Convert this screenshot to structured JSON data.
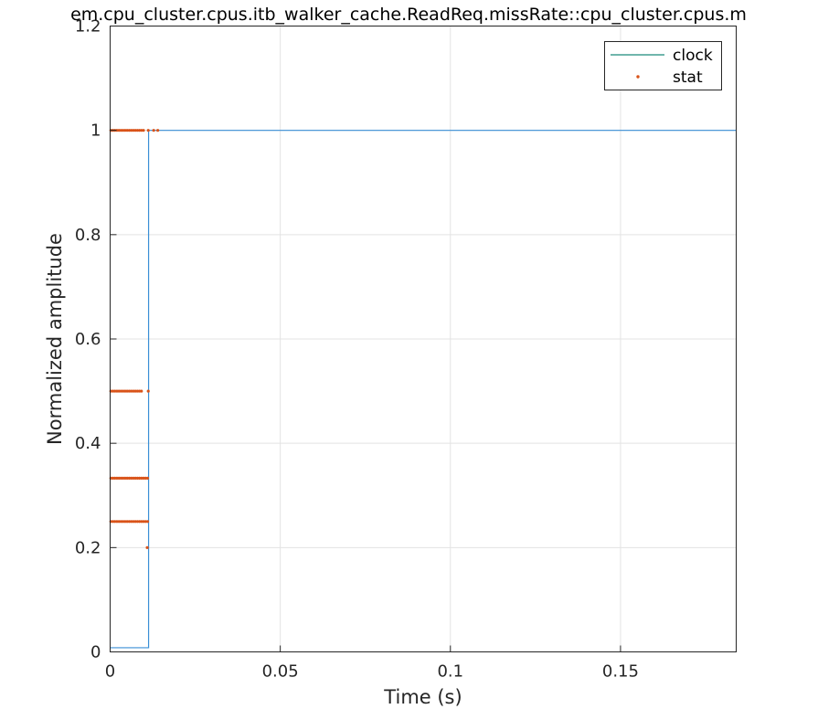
{
  "chart_data": {
    "type": "line",
    "title": "em.cpu_cluster.cpus.itb_walker_cache.ReadReq.missRate::cpu_cluster.cpus.m",
    "xlabel": "Time (s)",
    "ylabel": "Normalized amplitude",
    "xlim": [
      0,
      0.184
    ],
    "ylim": [
      0,
      1.2
    ],
    "xticks": [
      0,
      0.05,
      0.1,
      0.15
    ],
    "xtick_labels": [
      "0",
      "0.05",
      "0.1",
      "0.15"
    ],
    "yticks": [
      0,
      0.2,
      0.4,
      0.6,
      0.8,
      1,
      1.2
    ],
    "ytick_labels": [
      "0",
      "0.2",
      "0.4",
      "0.6",
      "0.8",
      "1",
      "1.2"
    ],
    "grid": true,
    "legend_position": "top-right",
    "series": [
      {
        "name": "clock",
        "style": "step-line",
        "color": "#3a8fd6",
        "legend_color": "#1a8a7a",
        "x": [
          0,
          0.0113,
          0.0113,
          0.184
        ],
        "y": [
          0.008,
          0.008,
          1,
          1
        ]
      },
      {
        "name": "stat",
        "style": "dots",
        "color": "#d95319",
        "points": [
          {
            "x": 0.0002,
            "y": 1
          },
          {
            "x": 0.0008,
            "y": 1
          },
          {
            "x": 0.0014,
            "y": 1
          },
          {
            "x": 0.002,
            "y": 1
          },
          {
            "x": 0.0026,
            "y": 1
          },
          {
            "x": 0.0032,
            "y": 1
          },
          {
            "x": 0.0038,
            "y": 1
          },
          {
            "x": 0.0044,
            "y": 1
          },
          {
            "x": 0.005,
            "y": 1
          },
          {
            "x": 0.0056,
            "y": 1
          },
          {
            "x": 0.0062,
            "y": 1
          },
          {
            "x": 0.0068,
            "y": 1
          },
          {
            "x": 0.0074,
            "y": 1
          },
          {
            "x": 0.008,
            "y": 1
          },
          {
            "x": 0.0086,
            "y": 1
          },
          {
            "x": 0.0092,
            "y": 1
          },
          {
            "x": 0.0098,
            "y": 1
          },
          {
            "x": 0.0112,
            "y": 1
          },
          {
            "x": 0.0128,
            "y": 1
          },
          {
            "x": 0.014,
            "y": 1
          },
          {
            "x": 0.0002,
            "y": 0.5
          },
          {
            "x": 0.0008,
            "y": 0.5
          },
          {
            "x": 0.0014,
            "y": 0.5
          },
          {
            "x": 0.002,
            "y": 0.5
          },
          {
            "x": 0.0026,
            "y": 0.5
          },
          {
            "x": 0.0032,
            "y": 0.5
          },
          {
            "x": 0.0038,
            "y": 0.5
          },
          {
            "x": 0.0044,
            "y": 0.5
          },
          {
            "x": 0.005,
            "y": 0.5
          },
          {
            "x": 0.0056,
            "y": 0.5
          },
          {
            "x": 0.0062,
            "y": 0.5
          },
          {
            "x": 0.0068,
            "y": 0.5
          },
          {
            "x": 0.0074,
            "y": 0.5
          },
          {
            "x": 0.008,
            "y": 0.5
          },
          {
            "x": 0.0086,
            "y": 0.5
          },
          {
            "x": 0.0092,
            "y": 0.5
          },
          {
            "x": 0.0112,
            "y": 0.5
          },
          {
            "x": 0.0002,
            "y": 0.333
          },
          {
            "x": 0.0008,
            "y": 0.333
          },
          {
            "x": 0.0014,
            "y": 0.333
          },
          {
            "x": 0.002,
            "y": 0.333
          },
          {
            "x": 0.0026,
            "y": 0.333
          },
          {
            "x": 0.0032,
            "y": 0.333
          },
          {
            "x": 0.0038,
            "y": 0.333
          },
          {
            "x": 0.0044,
            "y": 0.333
          },
          {
            "x": 0.005,
            "y": 0.333
          },
          {
            "x": 0.0056,
            "y": 0.333
          },
          {
            "x": 0.0062,
            "y": 0.333
          },
          {
            "x": 0.0068,
            "y": 0.333
          },
          {
            "x": 0.0074,
            "y": 0.333
          },
          {
            "x": 0.008,
            "y": 0.333
          },
          {
            "x": 0.0086,
            "y": 0.333
          },
          {
            "x": 0.0092,
            "y": 0.333
          },
          {
            "x": 0.0098,
            "y": 0.333
          },
          {
            "x": 0.0104,
            "y": 0.333
          },
          {
            "x": 0.011,
            "y": 0.333
          },
          {
            "x": 0.0002,
            "y": 0.25
          },
          {
            "x": 0.0008,
            "y": 0.25
          },
          {
            "x": 0.0014,
            "y": 0.25
          },
          {
            "x": 0.002,
            "y": 0.25
          },
          {
            "x": 0.0026,
            "y": 0.25
          },
          {
            "x": 0.0032,
            "y": 0.25
          },
          {
            "x": 0.0038,
            "y": 0.25
          },
          {
            "x": 0.0044,
            "y": 0.25
          },
          {
            "x": 0.005,
            "y": 0.25
          },
          {
            "x": 0.0056,
            "y": 0.25
          },
          {
            "x": 0.0062,
            "y": 0.25
          },
          {
            "x": 0.0068,
            "y": 0.25
          },
          {
            "x": 0.0074,
            "y": 0.25
          },
          {
            "x": 0.008,
            "y": 0.25
          },
          {
            "x": 0.0086,
            "y": 0.25
          },
          {
            "x": 0.0092,
            "y": 0.25
          },
          {
            "x": 0.0098,
            "y": 0.25
          },
          {
            "x": 0.0104,
            "y": 0.25
          },
          {
            "x": 0.011,
            "y": 0.25
          },
          {
            "x": 0.0109,
            "y": 0.2
          }
        ]
      }
    ],
    "colors": {
      "grid": "#e3e3e3",
      "axis": "#262626",
      "legend_border": "#262626"
    }
  }
}
